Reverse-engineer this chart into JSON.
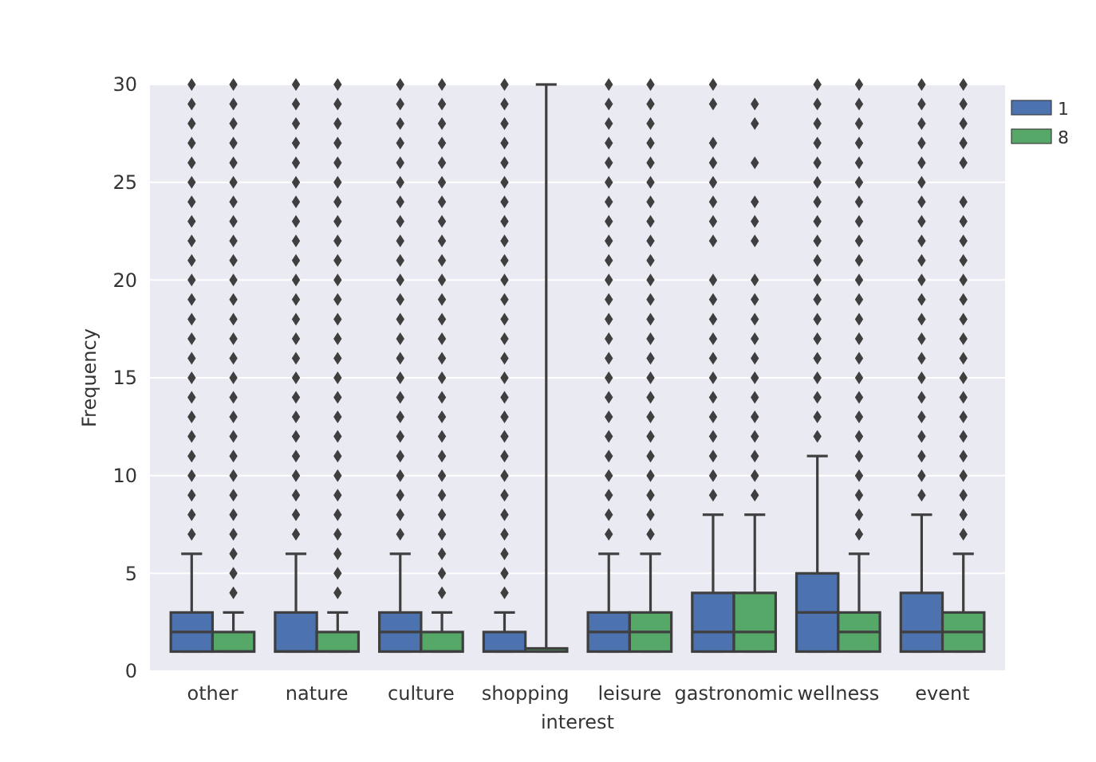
{
  "chart_data": {
    "type": "box",
    "xlabel": "interest",
    "ylabel": "Frequency",
    "categories": [
      "other",
      "nature",
      "culture",
      "shopping",
      "leisure",
      "gastronomic",
      "wellness",
      "event"
    ],
    "ylim": [
      0,
      30
    ],
    "yticks": [
      0,
      5,
      10,
      15,
      20,
      25,
      30
    ],
    "grid": "y",
    "legend": "top right",
    "series": [
      {
        "name": "1",
        "color": "#4c72b0",
        "boxes": [
          {
            "low": 1,
            "q1": 1,
            "median": 2,
            "q3": 3,
            "high": 6,
            "outliers": [
              7,
              8,
              9,
              10,
              11,
              12,
              13,
              14,
              15,
              16,
              17,
              18,
              19,
              20,
              21,
              22,
              23,
              24,
              25,
              26,
              27,
              28,
              29,
              30
            ]
          },
          {
            "low": 1,
            "q1": 1,
            "median": 1,
            "q3": 3,
            "high": 6,
            "outliers": [
              7,
              8,
              9,
              10,
              11,
              12,
              13,
              14,
              15,
              16,
              17,
              18,
              19,
              20,
              21,
              22,
              23,
              24,
              25,
              26,
              27,
              28,
              29,
              30
            ]
          },
          {
            "low": 1,
            "q1": 1,
            "median": 2,
            "q3": 3,
            "high": 6,
            "outliers": [
              7,
              8,
              9,
              10,
              11,
              12,
              13,
              14,
              15,
              16,
              17,
              18,
              19,
              20,
              21,
              22,
              23,
              24,
              25,
              26,
              27,
              28,
              29,
              30
            ]
          },
          {
            "low": 1,
            "q1": 1,
            "median": 1,
            "q3": 2,
            "high": 3,
            "outliers": [
              4,
              5,
              6,
              7,
              8,
              9,
              10,
              11,
              12,
              13,
              14,
              15,
              16,
              17,
              18,
              19,
              20,
              21,
              22,
              23,
              24,
              25,
              26,
              27,
              28,
              29,
              30
            ]
          },
          {
            "low": 1,
            "q1": 1,
            "median": 2,
            "q3": 3,
            "high": 6,
            "outliers": [
              7,
              8,
              9,
              10,
              11,
              12,
              13,
              14,
              15,
              16,
              17,
              18,
              19,
              20,
              21,
              22,
              23,
              24,
              25,
              26,
              27,
              28,
              29,
              30
            ]
          },
          {
            "low": 1,
            "q1": 1,
            "median": 2,
            "q3": 4,
            "high": 8,
            "outliers": [
              9,
              10,
              11,
              12,
              13,
              14,
              15,
              16,
              17,
              18,
              19,
              20,
              22,
              23,
              24,
              25,
              26,
              27,
              29,
              30
            ]
          },
          {
            "low": 1,
            "q1": 1,
            "median": 3,
            "q3": 5,
            "high": 11,
            "outliers": [
              12,
              13,
              14,
              15,
              16,
              17,
              18,
              19,
              20,
              21,
              22,
              23,
              24,
              25,
              26,
              27,
              28,
              29,
              30
            ]
          },
          {
            "low": 1,
            "q1": 1,
            "median": 2,
            "q3": 4,
            "high": 8,
            "outliers": [
              9,
              10,
              11,
              12,
              13,
              14,
              15,
              16,
              17,
              18,
              19,
              20,
              21,
              22,
              23,
              24,
              25,
              26,
              27,
              28,
              29,
              30
            ]
          }
        ]
      },
      {
        "name": "8",
        "color": "#55a868",
        "boxes": [
          {
            "low": 1,
            "q1": 1,
            "median": 1,
            "q3": 2,
            "high": 3,
            "outliers": [
              4,
              5,
              6,
              7,
              8,
              9,
              10,
              11,
              12,
              13,
              14,
              15,
              16,
              17,
              18,
              19,
              20,
              21,
              22,
              23,
              24,
              25,
              26,
              27,
              28,
              29,
              30
            ]
          },
          {
            "low": 1,
            "q1": 1,
            "median": 1,
            "q3": 2,
            "high": 3,
            "outliers": [
              4,
              5,
              6,
              7,
              8,
              9,
              10,
              11,
              12,
              13,
              14,
              15,
              16,
              17,
              18,
              19,
              20,
              21,
              22,
              23,
              24,
              25,
              26,
              27,
              28,
              29,
              30
            ]
          },
          {
            "low": 1,
            "q1": 1,
            "median": 1,
            "q3": 2,
            "high": 3,
            "outliers": [
              4,
              5,
              6,
              7,
              8,
              9,
              10,
              11,
              12,
              13,
              14,
              15,
              16,
              17,
              18,
              19,
              20,
              21,
              22,
              23,
              24,
              25,
              26,
              27,
              28,
              29,
              30
            ]
          },
          {
            "low": 1,
            "q1": 1,
            "median": 1,
            "q3": 1,
            "high": 30
          },
          {
            "low": 1,
            "q1": 1,
            "median": 2,
            "q3": 3,
            "high": 6,
            "outliers": [
              7,
              8,
              9,
              10,
              11,
              12,
              13,
              14,
              15,
              16,
              17,
              18,
              19,
              20,
              21,
              22,
              23,
              24,
              25,
              26,
              27,
              28,
              29,
              30
            ]
          },
          {
            "low": 1,
            "q1": 1,
            "median": 2,
            "q3": 4,
            "high": 8,
            "outliers": [
              9,
              10,
              11,
              12,
              13,
              14,
              15,
              16,
              17,
              18,
              19,
              20,
              22,
              23,
              24,
              26,
              28,
              29
            ]
          },
          {
            "low": 1,
            "q1": 1,
            "median": 2,
            "q3": 3,
            "high": 6,
            "outliers": [
              7,
              8,
              9,
              10,
              11,
              12,
              13,
              14,
              15,
              16,
              17,
              18,
              19,
              20,
              21,
              22,
              23,
              24,
              25,
              26,
              27,
              28,
              29,
              30
            ]
          },
          {
            "low": 1,
            "q1": 1,
            "median": 2,
            "q3": 3,
            "high": 6,
            "outliers": [
              7,
              8,
              9,
              10,
              11,
              12,
              13,
              14,
              15,
              16,
              17,
              18,
              19,
              20,
              21,
              22,
              23,
              24,
              26,
              27,
              28,
              29,
              30
            ]
          }
        ]
      }
    ]
  }
}
